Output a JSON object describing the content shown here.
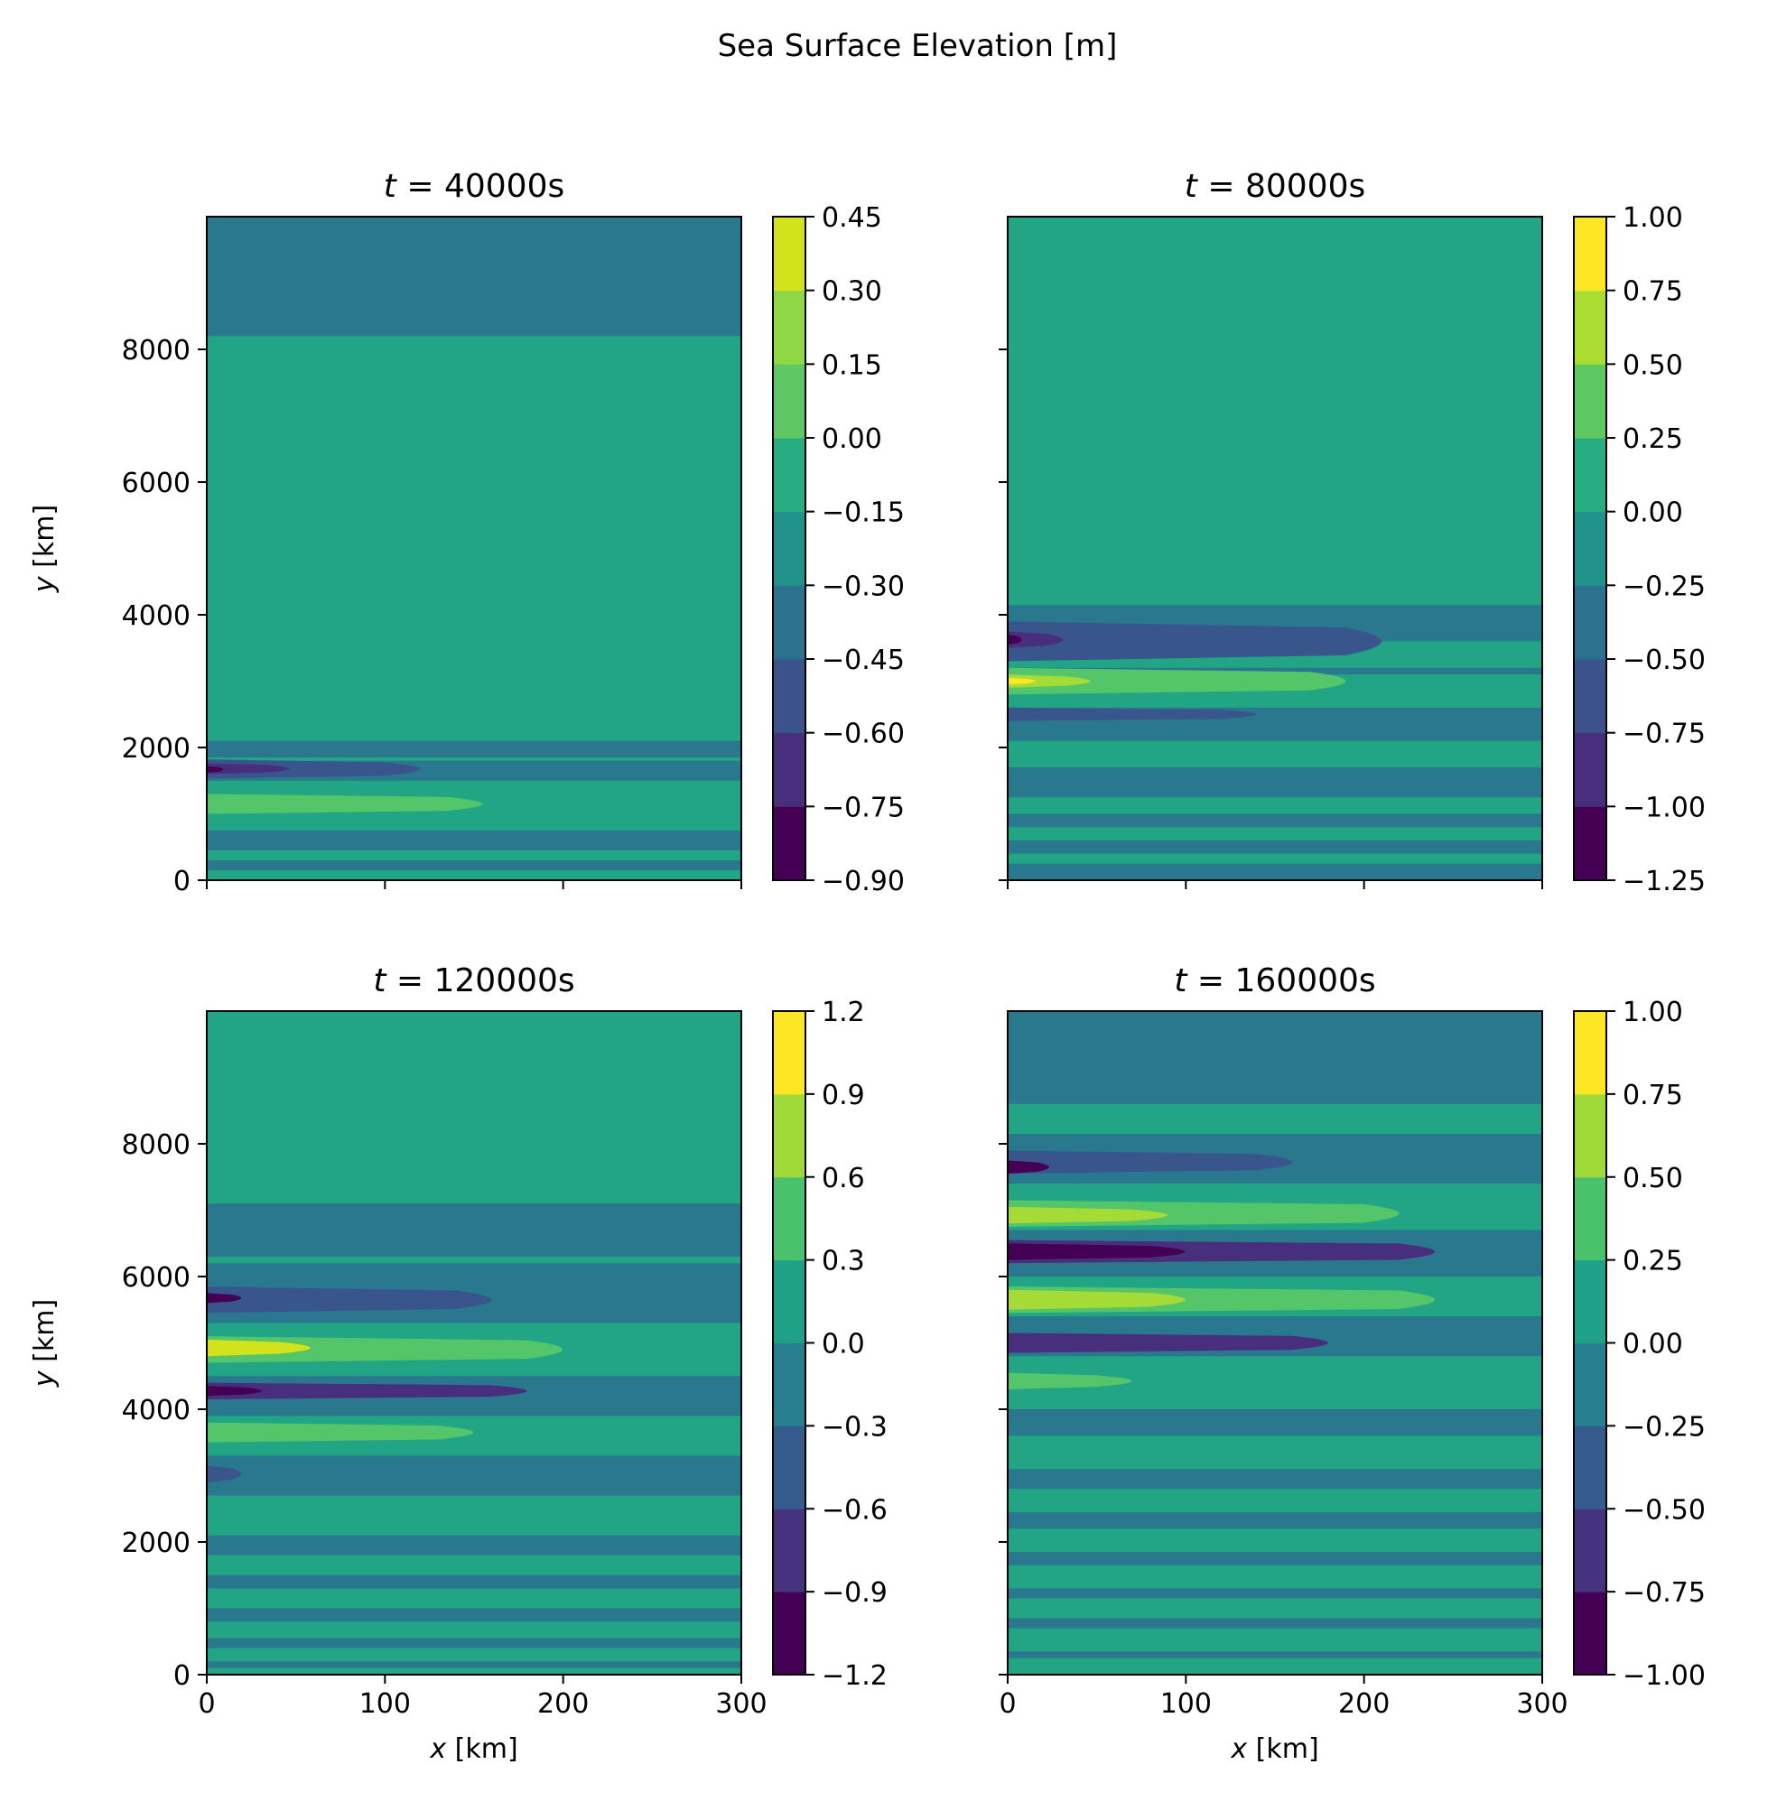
{
  "figure": {
    "suptitle": "Sea Surface Elevation [m]"
  },
  "palette": [
    "#440154",
    "#481a6c",
    "#472f7d",
    "#414487",
    "#39568c",
    "#31688e",
    "#2a788e",
    "#23888e",
    "#1f988b",
    "#22a884",
    "#35b779",
    "#54c568",
    "#7ad151",
    "#a5db36",
    "#d2e21b",
    "#fde725"
  ],
  "chart_data": [
    {
      "type": "heatmap",
      "title_prefix": "t",
      "title_eq": " = ",
      "title_value": "40000s",
      "xlabel_var": "x",
      "xlabel_unit": " [km]",
      "ylabel_var": "y",
      "ylabel_unit": " [km]",
      "xlim": [
        0,
        300
      ],
      "ylim": [
        0,
        10000
      ],
      "xticks": [
        "0",
        "100",
        "200",
        "300"
      ],
      "yticks": [
        "0",
        "2000",
        "4000",
        "6000",
        "8000"
      ],
      "colorbar_levels": [
        "−0.90",
        "−0.75",
        "−0.60",
        "−0.45",
        "−0.30",
        "−0.15",
        "0.00",
        "0.15",
        "0.30",
        "0.45"
      ],
      "colorbar_colors": [
        "#440154",
        "#472f7d",
        "#3b528b",
        "#2c728e",
        "#21918c",
        "#27ad81",
        "#5ec962",
        "#8fd744",
        "#d2e21b"
      ],
      "background_color": "#21a585",
      "bands": [
        {
          "y0": 8200,
          "y1": 10000,
          "color": "#2a788e",
          "x_end": 300
        },
        {
          "y0": 1850,
          "y1": 2100,
          "color": "#2a788e",
          "x_end": 300
        },
        {
          "y0": 1500,
          "y1": 1800,
          "color": "#2a788e",
          "x_end": 300
        },
        {
          "y0": 1000,
          "y1": 1300,
          "color": "#54c568",
          "x_end": 175
        },
        {
          "y0": 450,
          "y1": 750,
          "color": "#2a788e",
          "x_end": 300
        },
        {
          "y0": 150,
          "y1": 300,
          "color": "#2a788e",
          "x_end": 300
        },
        {
          "y0": 1530,
          "y1": 1820,
          "color": "#39568c",
          "x_end": 140
        },
        {
          "y0": 1600,
          "y1": 1760,
          "color": "#472f7d",
          "x_end": 60
        },
        {
          "y0": 1620,
          "y1": 1720,
          "color": "#440154",
          "x_end": 12
        }
      ]
    },
    {
      "type": "heatmap",
      "title_prefix": "t",
      "title_eq": " = ",
      "title_value": "80000s",
      "xlabel_var": "x",
      "xlabel_unit": " [km]",
      "ylabel_var": "",
      "ylabel_unit": "",
      "xlim": [
        0,
        300
      ],
      "ylim": [
        0,
        10000
      ],
      "xticks": [
        "0",
        "100",
        "200",
        "300"
      ],
      "yticks": [
        "0",
        "2000",
        "4000",
        "6000",
        "8000"
      ],
      "colorbar_levels": [
        "−1.25",
        "−1.00",
        "−0.75",
        "−0.50",
        "−0.25",
        "0.00",
        "0.25",
        "0.50",
        "0.75",
        "1.00"
      ],
      "colorbar_colors": [
        "#440154",
        "#472f7d",
        "#3b528b",
        "#2c728e",
        "#21918c",
        "#27ad81",
        "#5ec962",
        "#aadc32",
        "#fde725"
      ],
      "background_color": "#21a585",
      "bands": [
        {
          "y0": 0,
          "y1": 4150,
          "color": "#2a788e",
          "x_end": 300
        },
        {
          "y0": 3200,
          "y1": 3600,
          "color": "#21a585",
          "x_end": 300
        },
        {
          "y0": 2600,
          "y1": 3100,
          "color": "#21a585",
          "x_end": 300
        },
        {
          "y0": 1700,
          "y1": 2100,
          "color": "#21a585",
          "x_end": 300
        },
        {
          "y0": 1000,
          "y1": 1250,
          "color": "#21a585",
          "x_end": 300
        },
        {
          "y0": 600,
          "y1": 800,
          "color": "#21a585",
          "x_end": 300
        },
        {
          "y0": 250,
          "y1": 400,
          "color": "#21a585",
          "x_end": 300
        },
        {
          "y0": 3300,
          "y1": 3900,
          "color": "#39568c",
          "x_end": 230
        },
        {
          "y0": 2400,
          "y1": 2600,
          "color": "#39568c",
          "x_end": 160
        },
        {
          "y0": 2800,
          "y1": 3200,
          "color": "#54c568",
          "x_end": 210
        },
        {
          "y0": 2900,
          "y1": 3100,
          "color": "#a5db36",
          "x_end": 60
        },
        {
          "y0": 2950,
          "y1": 3050,
          "color": "#fde725",
          "x_end": 20
        },
        {
          "y0": 3500,
          "y1": 3750,
          "color": "#472f7d",
          "x_end": 40
        },
        {
          "y0": 3550,
          "y1": 3700,
          "color": "#440154",
          "x_end": 10
        }
      ]
    },
    {
      "type": "heatmap",
      "title_prefix": "t",
      "title_eq": " = ",
      "title_value": "120000s",
      "xlabel_var": "x",
      "xlabel_unit": " [km]",
      "ylabel_var": "y",
      "ylabel_unit": " [km]",
      "xlim": [
        0,
        300
      ],
      "ylim": [
        0,
        10000
      ],
      "xticks": [
        "0",
        "100",
        "200",
        "300"
      ],
      "yticks": [
        "0",
        "2000",
        "4000",
        "6000",
        "8000"
      ],
      "colorbar_levels": [
        "−1.2",
        "−0.9",
        "−0.6",
        "−0.3",
        "0.0",
        "0.3",
        "0.6",
        "0.9",
        "1.2"
      ],
      "colorbar_colors": [
        "#440154",
        "#46327e",
        "#365c8d",
        "#277f8e",
        "#1fa187",
        "#4ac16d",
        "#a0da39",
        "#fde725"
      ],
      "background_color": "#21a585",
      "bands": [
        {
          "y0": 6300,
          "y1": 7100,
          "color": "#2a788e",
          "x_end": 300
        },
        {
          "y0": 5300,
          "y1": 6200,
          "color": "#2a788e",
          "x_end": 300
        },
        {
          "y0": 5450,
          "y1": 5850,
          "color": "#39568c",
          "x_end": 180
        },
        {
          "y0": 5600,
          "y1": 5750,
          "color": "#440154",
          "x_end": 25
        },
        {
          "y0": 4700,
          "y1": 5100,
          "color": "#54c568",
          "x_end": 220
        },
        {
          "y0": 4800,
          "y1": 5050,
          "color": "#d2e21b",
          "x_end": 75
        },
        {
          "y0": 3900,
          "y1": 4500,
          "color": "#2a788e",
          "x_end": 300
        },
        {
          "y0": 4150,
          "y1": 4400,
          "color": "#472f7d",
          "x_end": 200
        },
        {
          "y0": 4200,
          "y1": 4350,
          "color": "#440154",
          "x_end": 40
        },
        {
          "y0": 3500,
          "y1": 3800,
          "color": "#54c568",
          "x_end": 170
        },
        {
          "y0": 2700,
          "y1": 3300,
          "color": "#2a788e",
          "x_end": 300
        },
        {
          "y0": 2900,
          "y1": 3150,
          "color": "#39568c",
          "x_end": 25
        },
        {
          "y0": 1800,
          "y1": 2100,
          "color": "#2a788e",
          "x_end": 300
        },
        {
          "y0": 1300,
          "y1": 1500,
          "color": "#2a788e",
          "x_end": 300
        },
        {
          "y0": 800,
          "y1": 1000,
          "color": "#2a788e",
          "x_end": 300
        },
        {
          "y0": 400,
          "y1": 550,
          "color": "#2a788e",
          "x_end": 300
        },
        {
          "y0": 100,
          "y1": 200,
          "color": "#2a788e",
          "x_end": 300
        }
      ]
    },
    {
      "type": "heatmap",
      "title_prefix": "t",
      "title_eq": " = ",
      "title_value": "160000s",
      "xlabel_var": "x",
      "xlabel_unit": " [km]",
      "ylabel_var": "",
      "ylabel_unit": "",
      "xlim": [
        0,
        300
      ],
      "ylim": [
        0,
        10000
      ],
      "xticks": [
        "0",
        "100",
        "200",
        "300"
      ],
      "yticks": [
        "0",
        "2000",
        "4000",
        "6000",
        "8000"
      ],
      "colorbar_levels": [
        "−1.00",
        "−0.75",
        "−0.50",
        "−0.25",
        "0.00",
        "0.25",
        "0.50",
        "0.75",
        "1.00"
      ],
      "colorbar_colors": [
        "#440154",
        "#46327e",
        "#365c8d",
        "#277f8e",
        "#1fa187",
        "#4ac16d",
        "#a0da39",
        "#fde725"
      ],
      "background_color": "#21a585",
      "bands": [
        {
          "y0": 8600,
          "y1": 10000,
          "color": "#2a788e",
          "x_end": 300
        },
        {
          "y0": 7400,
          "y1": 8150,
          "color": "#2a788e",
          "x_end": 300
        },
        {
          "y0": 7550,
          "y1": 7900,
          "color": "#39568c",
          "x_end": 180
        },
        {
          "y0": 7550,
          "y1": 7750,
          "color": "#440154",
          "x_end": 30
        },
        {
          "y0": 6750,
          "y1": 7150,
          "color": "#54c568",
          "x_end": 240
        },
        {
          "y0": 6800,
          "y1": 7050,
          "color": "#a5db36",
          "x_end": 110
        },
        {
          "y0": 6000,
          "y1": 6700,
          "color": "#2a788e",
          "x_end": 300
        },
        {
          "y0": 6200,
          "y1": 6550,
          "color": "#472f7d",
          "x_end": 260
        },
        {
          "y0": 6250,
          "y1": 6500,
          "color": "#440154",
          "x_end": 120
        },
        {
          "y0": 5450,
          "y1": 5850,
          "color": "#54c568",
          "x_end": 260
        },
        {
          "y0": 5500,
          "y1": 5800,
          "color": "#a5db36",
          "x_end": 120
        },
        {
          "y0": 4800,
          "y1": 5400,
          "color": "#2a788e",
          "x_end": 300
        },
        {
          "y0": 4850,
          "y1": 5150,
          "color": "#472f7d",
          "x_end": 200
        },
        {
          "y0": 4300,
          "y1": 4550,
          "color": "#54c568",
          "x_end": 90
        },
        {
          "y0": 3600,
          "y1": 4000,
          "color": "#2a788e",
          "x_end": 300
        },
        {
          "y0": 2800,
          "y1": 3100,
          "color": "#2a788e",
          "x_end": 300
        },
        {
          "y0": 2200,
          "y1": 2450,
          "color": "#2a788e",
          "x_end": 300
        },
        {
          "y0": 1650,
          "y1": 1850,
          "color": "#2a788e",
          "x_end": 300
        },
        {
          "y0": 1150,
          "y1": 1300,
          "color": "#2a788e",
          "x_end": 300
        },
        {
          "y0": 700,
          "y1": 850,
          "color": "#2a788e",
          "x_end": 300
        },
        {
          "y0": 250,
          "y1": 350,
          "color": "#2a788e",
          "x_end": 300
        }
      ]
    }
  ]
}
